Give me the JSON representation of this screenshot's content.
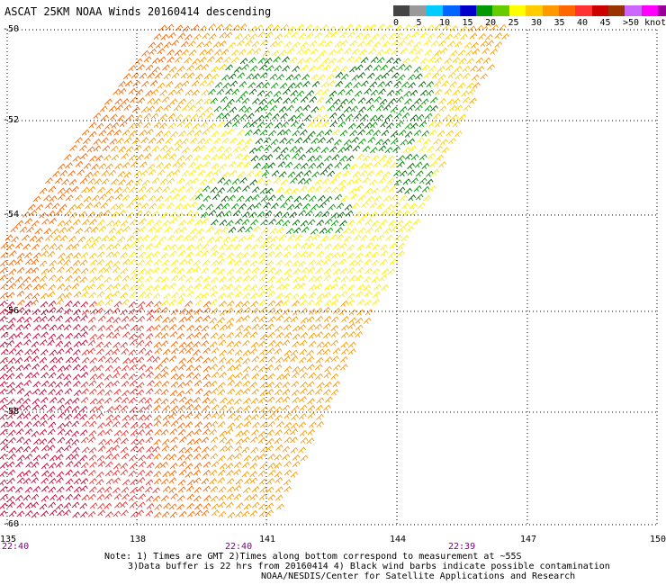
{
  "title": "ASCAT 25KM NOAA Winds 20160414 descending",
  "color_scale": {
    "labels": [
      "0",
      "5",
      "10",
      "15",
      "20",
      "25",
      "30",
      "35",
      "40",
      "45",
      ">50 knots"
    ],
    "colors": [
      "#444444",
      "#999999",
      "#00ccff",
      "#0066ff",
      "#0000cc",
      "#009900",
      "#66cc00",
      "#ffff00",
      "#ffcc00",
      "#ff9900",
      "#ff6600",
      "#ff3333",
      "#cc0000",
      "#993300",
      "#cc66ff",
      "#ff00ff",
      "#990099",
      "#330066"
    ]
  },
  "axes": {
    "lat_labels": [
      "-50",
      "-52",
      "-54",
      "-56",
      "-58",
      "-60"
    ],
    "lon_labels": [
      "135",
      "138",
      "141",
      "144",
      "147",
      "150"
    ]
  },
  "time_labels": [
    "22:40",
    "22:40",
    "22:39"
  ],
  "notes": {
    "line1": "Note: 1) Times are GMT 2)Times along bottom correspond to measurement at ~55S",
    "line2": "3)Data buffer is 22 hrs from 20160414 4) Black wind barbs indicate possible contamination",
    "line3": "NOAA/NESDIS/Center for Satellite Applications and Research"
  },
  "wind_colors": {
    "green_dark": "#006600",
    "green": "#009900",
    "yellow": "#ffee00",
    "gold": "#ffcc00",
    "orange": "#ff9900",
    "dark_orange": "#ff6600",
    "red": "#ee3333",
    "crimson": "#cc0033"
  }
}
